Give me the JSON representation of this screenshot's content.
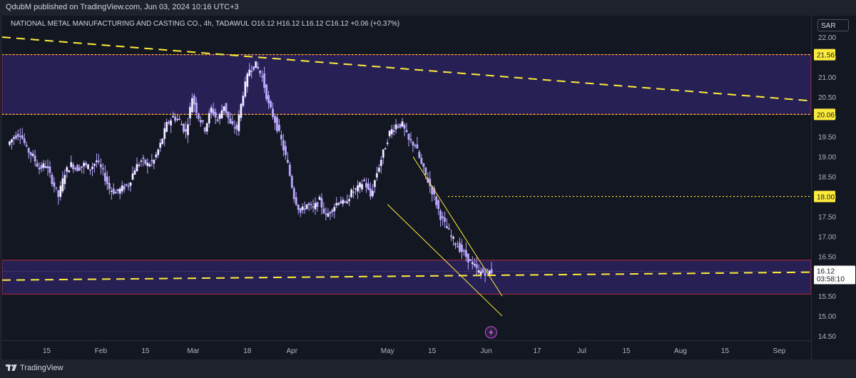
{
  "header": {
    "published": "QdubM published on TradingView.com, Jun 03, 2024 10:16 UTC+3"
  },
  "symbol": {
    "name": "NATIONAL METAL MANUFACTURING AND CASTING CO., 4h, TADAWUL",
    "ohlc": [
      {
        "label": "O",
        "value": "16.12"
      },
      {
        "label": "H",
        "value": "16.12"
      },
      {
        "label": "L",
        "value": "16.12"
      },
      {
        "label": "C",
        "value": "16.12"
      }
    ],
    "change": "+0.06 (+0.37%)"
  },
  "price_axis": {
    "currency": "SAR",
    "current_price": "16.12",
    "countdown": "03:58:10"
  },
  "footer": {
    "brand": "TradingView"
  },
  "colors": {
    "background": "#131722",
    "candle": "#b9a6ff",
    "zone_fill": "#2e2466",
    "zone_border": "#f23645",
    "level_line": "#ffeb3b",
    "trend_line": "#ffeb3b",
    "label_bg": "#ffeb3b"
  },
  "icons": [
    "tradingview-logo-icon",
    "lightning-icon"
  ],
  "chart_data": {
    "type": "candlestick",
    "title": "NATIONAL METAL MANUFACTURING AND CASTING CO., 4h, TADAWUL",
    "y_range": [
      14.5,
      22.0
    ],
    "y_ticks": [
      "22.00",
      "21.50",
      "21.00",
      "20.50",
      "20.00",
      "19.50",
      "19.00",
      "18.50",
      "18.00",
      "17.50",
      "17.00",
      "16.50",
      "16.00",
      "15.50",
      "15.00",
      "14.50"
    ],
    "x_labels": [
      "15",
      "Feb",
      "15",
      "Mar",
      "18",
      "Apr",
      "May",
      "15",
      "Jun",
      "17",
      "Jul",
      "15",
      "Aug",
      "15",
      "Sep"
    ],
    "x_label_days": [
      15,
      32,
      46,
      61,
      78,
      92,
      122,
      136,
      153,
      169,
      183,
      197,
      214,
      228,
      245
    ],
    "x_start_day": 1,
    "x_end_day": 255,
    "price_labels": [
      "21.56",
      "20.06",
      "18.00"
    ],
    "series": [
      {
        "key": "price",
        "points": [
          [
            3,
            19.3
          ],
          [
            5,
            19.5
          ],
          [
            7,
            19.6
          ],
          [
            9,
            19.2
          ],
          [
            11,
            19.0
          ],
          [
            13,
            18.7
          ],
          [
            15,
            18.8
          ],
          [
            17,
            18.4
          ],
          [
            19,
            18.0
          ],
          [
            21,
            18.6
          ],
          [
            23,
            18.8
          ],
          [
            25,
            18.7
          ],
          [
            27,
            18.8
          ],
          [
            29,
            18.7
          ],
          [
            31,
            18.9
          ],
          [
            33,
            18.6
          ],
          [
            35,
            18.2
          ],
          [
            37,
            18.1
          ],
          [
            39,
            18.2
          ],
          [
            41,
            18.3
          ],
          [
            43,
            18.7
          ],
          [
            45,
            18.9
          ],
          [
            47,
            18.8
          ],
          [
            49,
            18.9
          ],
          [
            51,
            19.3
          ],
          [
            53,
            19.8
          ],
          [
            55,
            20.0
          ],
          [
            57,
            19.9
          ],
          [
            59,
            19.6
          ],
          [
            61,
            20.5
          ],
          [
            63,
            20.0
          ],
          [
            65,
            19.7
          ],
          [
            67,
            20.2
          ],
          [
            69,
            19.9
          ],
          [
            71,
            20.3
          ],
          [
            73,
            19.8
          ],
          [
            75,
            19.7
          ],
          [
            77,
            20.6
          ],
          [
            79,
            21.2
          ],
          [
            81,
            21.3
          ],
          [
            83,
            21.0
          ],
          [
            85,
            20.3
          ],
          [
            87,
            19.9
          ],
          [
            89,
            19.4
          ],
          [
            91,
            18.8
          ],
          [
            93,
            18.0
          ],
          [
            95,
            17.6
          ],
          [
            97,
            17.8
          ],
          [
            99,
            17.7
          ],
          [
            101,
            17.9
          ],
          [
            103,
            17.5
          ],
          [
            105,
            17.7
          ],
          [
            107,
            17.9
          ],
          [
            109,
            17.8
          ],
          [
            111,
            18.1
          ],
          [
            113,
            18.2
          ],
          [
            115,
            18.4
          ],
          [
            117,
            18.0
          ],
          [
            119,
            18.6
          ],
          [
            121,
            19.1
          ],
          [
            123,
            19.6
          ],
          [
            125,
            19.8
          ],
          [
            127,
            19.8
          ],
          [
            129,
            19.4
          ],
          [
            131,
            19.3
          ],
          [
            133,
            18.8
          ],
          [
            135,
            18.4
          ],
          [
            137,
            18.0
          ],
          [
            139,
            17.5
          ],
          [
            141,
            17.2
          ],
          [
            143,
            16.9
          ],
          [
            145,
            16.7
          ],
          [
            147,
            16.5
          ],
          [
            149,
            16.3
          ],
          [
            151,
            16.1
          ],
          [
            153,
            16.1
          ],
          [
            155,
            16.12
          ]
        ]
      }
    ],
    "zones": [
      {
        "from": 20.06,
        "to": 21.56,
        "x_from_day": 1,
        "x_to_day": 255
      },
      {
        "from": 15.55,
        "to": 16.4,
        "x_from_day": 1,
        "x_to_day": 255
      }
    ],
    "levels": [
      {
        "value": 21.56,
        "x_from_day": 1
      },
      {
        "value": 20.06,
        "x_from_day": 1
      },
      {
        "value": 18.0,
        "x_from_day": 141
      }
    ],
    "trend_lines": [
      {
        "style": "dashed",
        "points": [
          [
            1,
            22.0
          ],
          [
            255,
            20.4
          ]
        ]
      },
      {
        "style": "dashed",
        "points": [
          [
            1,
            15.9
          ],
          [
            255,
            16.1
          ]
        ]
      },
      {
        "style": "solid",
        "points": [
          [
            130,
            19.0
          ],
          [
            158,
            15.5
          ]
        ]
      },
      {
        "style": "solid",
        "points": [
          [
            122,
            17.8
          ],
          [
            158,
            15.0
          ]
        ]
      }
    ],
    "grid": false,
    "legend": "top-left"
  }
}
